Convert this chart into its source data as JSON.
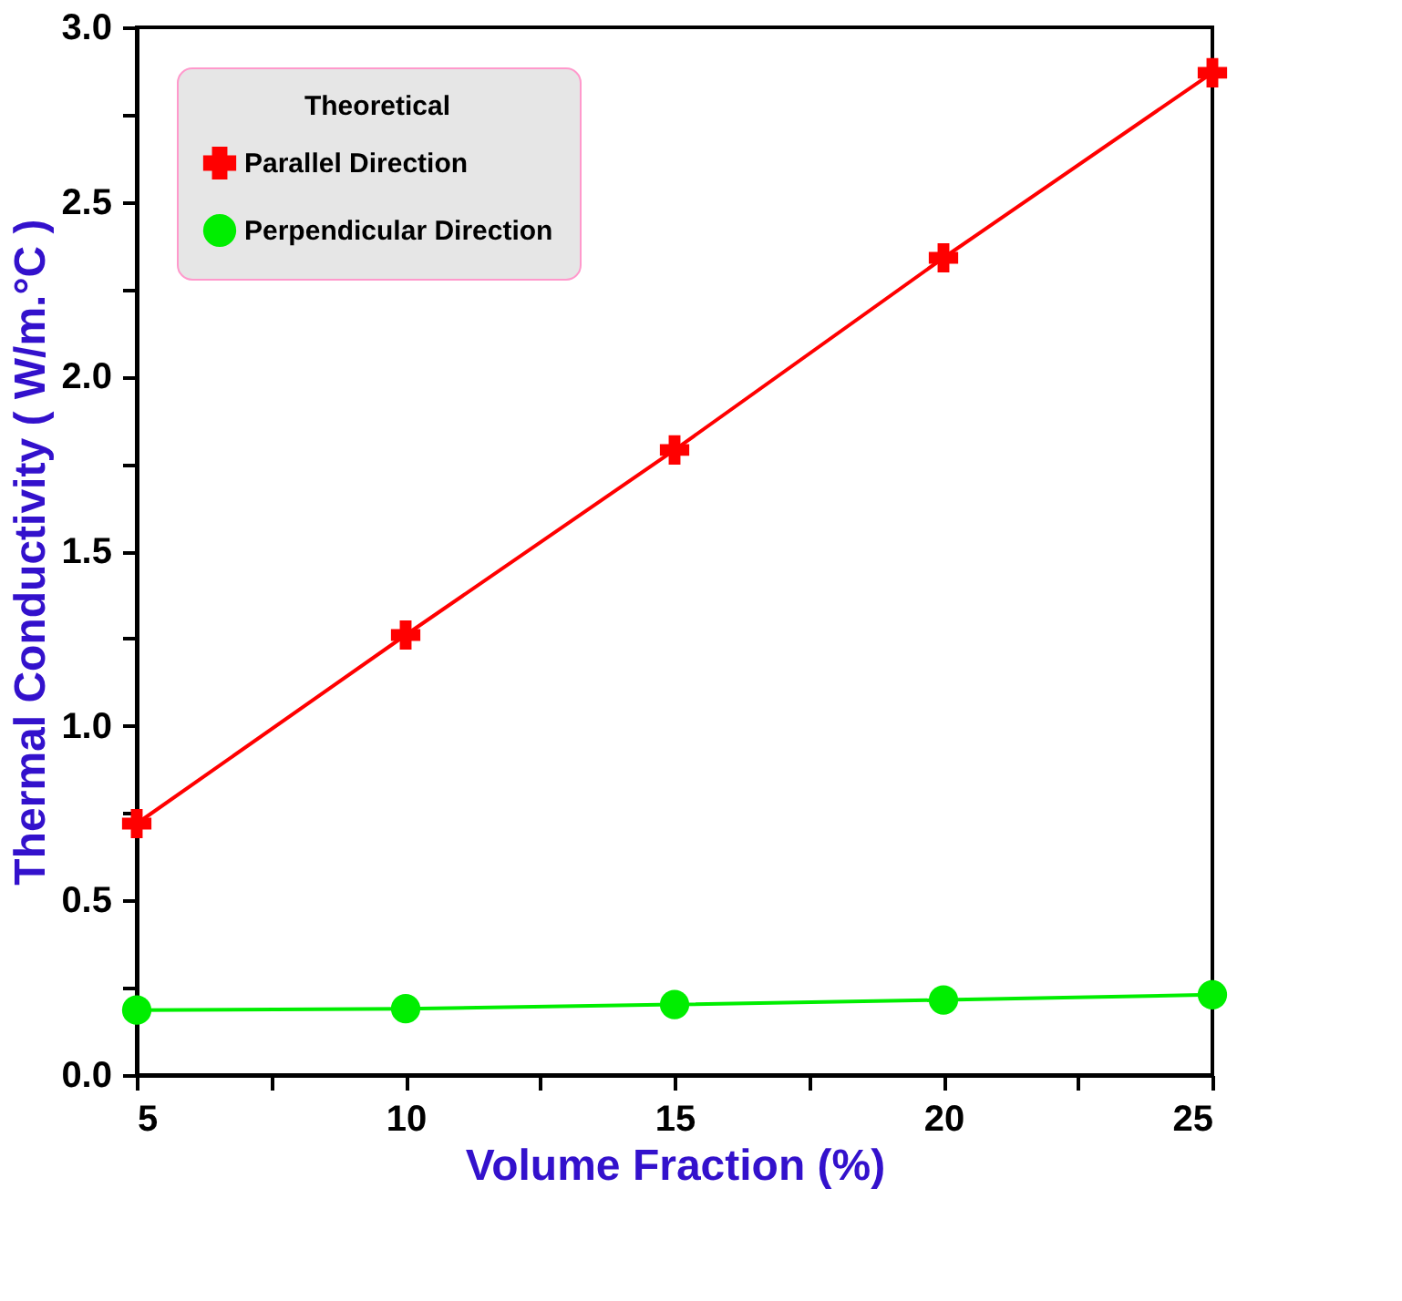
{
  "chart_data": {
    "type": "line",
    "xlabel": "Volume Fraction (%)",
    "ylabel": "Thermal Conductivity ( W/m.°C )",
    "legend_title": "Theoretical",
    "x": [
      5,
      10,
      15,
      20,
      25
    ],
    "series": [
      {
        "name": "Parallel Direction",
        "color": "#ff0000",
        "marker": "cross",
        "values": [
          0.72,
          1.26,
          1.79,
          2.34,
          2.87
        ]
      },
      {
        "name": "Perpendicular Direction",
        "color": "#00ee00",
        "marker": "circle",
        "values": [
          0.186,
          0.19,
          0.202,
          0.215,
          0.23
        ]
      }
    ],
    "xlim": [
      5,
      25
    ],
    "ylim": [
      0,
      3
    ],
    "xticks": [
      5,
      {
        "value": 7.5,
        "label": null
      },
      10,
      {
        "value": 12.5,
        "label": null
      },
      15,
      {
        "value": 17.5,
        "label": null
      },
      20,
      {
        "value": 22.5,
        "label": null
      },
      25
    ],
    "yticks": [
      "0.0",
      {
        "value": 0.25,
        "label": null
      },
      {
        "value": 0.5,
        "label": "0.5"
      },
      {
        "value": 0.75,
        "label": null
      },
      {
        "value": 1,
        "label": "1.0"
      },
      {
        "value": 1.25,
        "label": null
      },
      {
        "value": 1.5,
        "label": "1.5"
      },
      {
        "value": 1.75,
        "label": null
      },
      {
        "value": 2,
        "label": "2.0"
      },
      {
        "value": 2.25,
        "label": null
      },
      {
        "value": 2.5,
        "label": "2.5"
      },
      {
        "value": 2.75,
        "label": null
      },
      {
        "value": 3,
        "label": "3.0"
      }
    ],
    "grid": false,
    "legend": "top left",
    "line_style": "solid"
  }
}
